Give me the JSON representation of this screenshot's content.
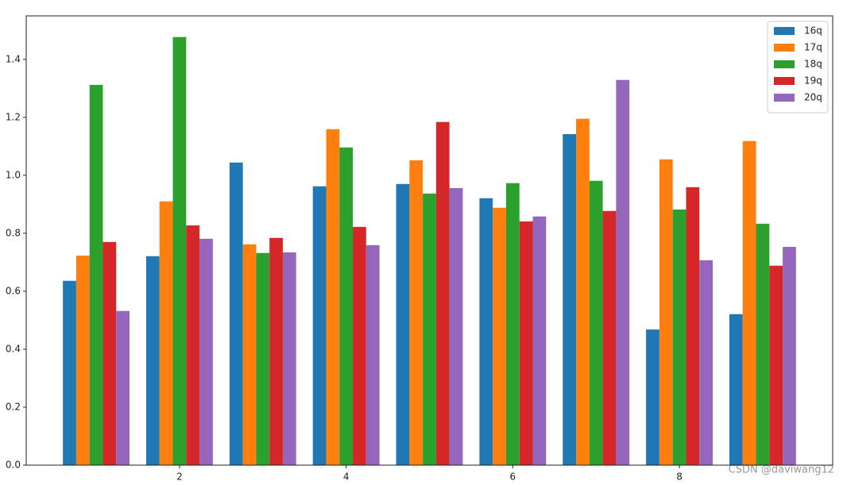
{
  "chart_data": {
    "type": "bar",
    "x": [
      1,
      2,
      3,
      4,
      5,
      6,
      7,
      8,
      9
    ],
    "series": [
      {
        "name": "16q",
        "color": "#1f77b4",
        "values": [
          0.636,
          0.721,
          1.044,
          0.962,
          0.97,
          0.921,
          1.142,
          0.468,
          0.521
        ]
      },
      {
        "name": "17q",
        "color": "#ff7f0e",
        "values": [
          0.723,
          0.91,
          0.762,
          1.159,
          1.052,
          0.888,
          1.195,
          1.055,
          1.118
        ]
      },
      {
        "name": "18q",
        "color": "#2ca02c",
        "values": [
          1.312,
          1.477,
          0.732,
          1.096,
          0.937,
          0.973,
          0.981,
          0.882,
          0.833
        ]
      },
      {
        "name": "19q",
        "color": "#d62728",
        "values": [
          0.77,
          0.827,
          0.784,
          0.822,
          1.184,
          0.841,
          0.877,
          0.959,
          0.688
        ]
      },
      {
        "name": "20q",
        "color": "#9467bd",
        "values": [
          0.532,
          0.781,
          0.734,
          0.759,
          0.956,
          0.858,
          1.329,
          0.707,
          0.753
        ]
      }
    ],
    "xlim": [
      0.16,
      9.84
    ],
    "xticks": [
      2,
      4,
      6,
      8
    ],
    "ylim": [
      0,
      1.55
    ],
    "yticks": [
      {
        "value": 0,
        "label": "0.0"
      },
      0.2,
      0.4,
      0.6,
      0.8,
      {
        "value": 1,
        "label": "1.0"
      },
      1.2,
      1.4
    ],
    "legend": "upper right",
    "watermark": "CSDN @daviwang12"
  }
}
